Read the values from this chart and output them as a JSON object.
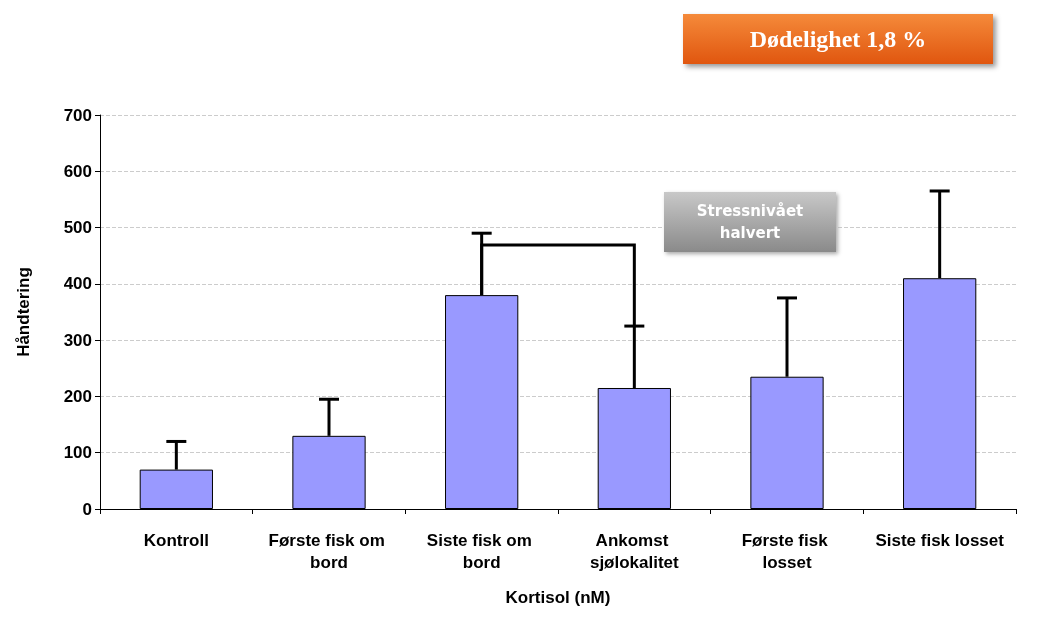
{
  "chart_data": {
    "type": "bar",
    "xlabel": "Kortisol (nM)",
    "ylabel": "Håndtering",
    "categories": [
      "Kontroll",
      "Første fisk om bord",
      "Siste fisk om bord",
      "Ankomst sjølokalitet",
      "Første fisk losset",
      "Siste fisk losset"
    ],
    "values": [
      70,
      130,
      380,
      215,
      235,
      410
    ],
    "errors": [
      [
        70,
        120
      ],
      [
        130,
        195
      ],
      [
        380,
        490
      ],
      [
        215,
        325
      ],
      [
        235,
        375
      ],
      [
        410,
        565
      ]
    ],
    "color": "#9999ff",
    "ylim": [
      0,
      700
    ],
    "yticks": [
      0,
      100,
      200,
      300,
      400,
      500,
      600,
      700
    ],
    "grid": "y",
    "annotations": [
      "Dødelighet 1,8 %",
      "Stressnivået halvert"
    ]
  }
}
